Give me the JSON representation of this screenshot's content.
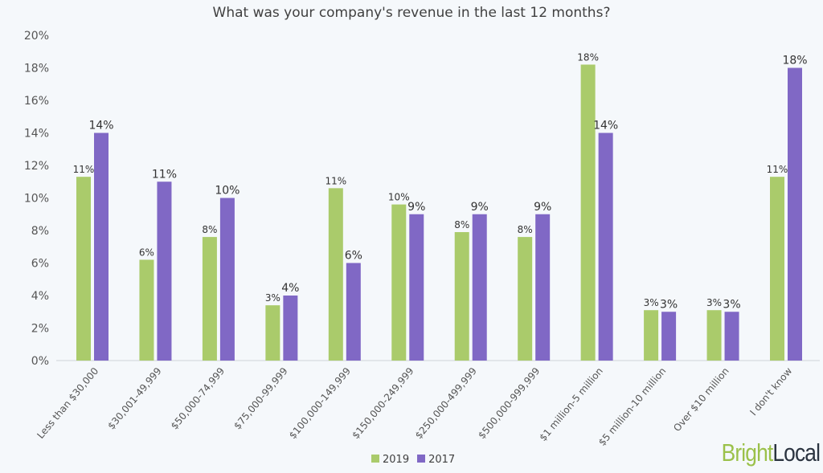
{
  "chart_data": {
    "type": "bar",
    "title": "What was your company's revenue in the last 12 months?",
    "xlabel": "",
    "ylabel": "",
    "ylim": [
      0,
      20
    ],
    "yticks": [
      "0%",
      "2%",
      "4%",
      "6%",
      "8%",
      "10%",
      "12%",
      "14%",
      "16%",
      "18%",
      "20%"
    ],
    "grid": false,
    "legend_placement": "bottom",
    "categories": [
      "Less than $30,000",
      "$30,001-49,999",
      "$50,000-74,999",
      "$75,000-99,999",
      "$100,000-149,999",
      "$150,000-249,999",
      "$250,000-499,999",
      "$500,000-999,999",
      "$1 million-5 million",
      "$5 million-10 million",
      "Over $10 million",
      "I don't know"
    ],
    "series": [
      {
        "name": "2019",
        "color": "#aacb6b",
        "values": [
          11.3,
          6.2,
          7.6,
          3.4,
          10.6,
          9.6,
          7.9,
          7.6,
          18.2,
          3.1,
          3.1,
          11.3
        ],
        "labels": [
          "11%",
          "6%",
          "8%",
          "3%",
          "11%",
          "10%",
          "8%",
          "8%",
          "18%",
          "3%",
          "3%",
          "11%"
        ]
      },
      {
        "name": "2017",
        "color": "#8068c5",
        "values": [
          14,
          11,
          10,
          4,
          6,
          9,
          9,
          9,
          14,
          3,
          3,
          18
        ],
        "labels": [
          "14%",
          "11%",
          "10%",
          "4%",
          "6%",
          "9%",
          "9%",
          "9%",
          "14%",
          "3%",
          "3%",
          "18%"
        ]
      }
    ]
  },
  "brand": {
    "part1": "Bright",
    "part2": "Local",
    "color1": "#9bc14a",
    "color2": "#2b3440"
  }
}
